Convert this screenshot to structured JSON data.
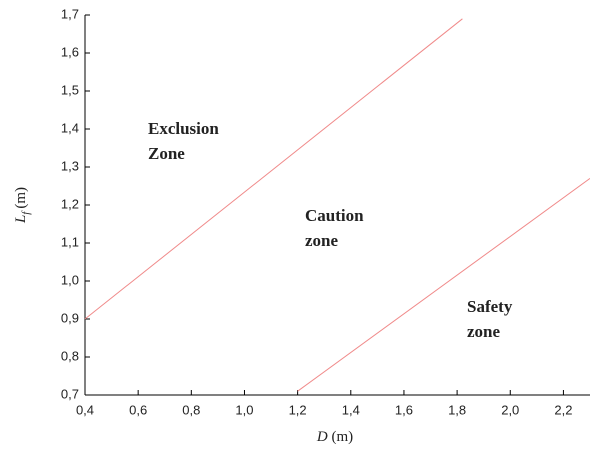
{
  "chart_data": {
    "type": "line",
    "xlabel": {
      "symbol": "D",
      "unit": "(m)"
    },
    "ylabel": {
      "symbol": "L",
      "subscript": "f",
      "unit": "(m)"
    },
    "series": [
      {
        "color": "#f08a8a",
        "x": [
          0.4,
          1.82
        ],
        "values": [
          0.9,
          1.69
        ]
      },
      {
        "color": "#f08a8a",
        "x": [
          1.2,
          2.3
        ],
        "values": [
          0.71,
          1.27
        ]
      }
    ],
    "annotations": [
      {
        "lines": [
          "Exclusion",
          "Zone"
        ],
        "color": "#e3212b"
      },
      {
        "lines": [
          "Caution",
          "zone"
        ],
        "color": "#e3212b"
      },
      {
        "lines": [
          "Safety",
          "zone"
        ],
        "color": "#e3212b"
      }
    ],
    "xlim": [
      0.4,
      2.3
    ],
    "ylim": [
      0.7,
      1.7
    ],
    "xticks": [
      {
        "value": 0.4,
        "label": "0,4"
      },
      {
        "value": 0.6,
        "label": "0,6"
      },
      {
        "value": 0.8,
        "label": "0,8"
      },
      {
        "value": 1.0,
        "label": "1,0"
      },
      {
        "value": 1.2,
        "label": "1,2"
      },
      {
        "value": 1.4,
        "label": "1,4"
      },
      {
        "value": 1.6,
        "label": "1,6"
      },
      {
        "value": 1.8,
        "label": "1,8"
      },
      {
        "value": 2.0,
        "label": "2,0"
      },
      {
        "value": 2.2,
        "label": "2,2"
      }
    ],
    "yticks": [
      {
        "value": 0.7,
        "label": "0,7"
      },
      {
        "value": 0.8,
        "label": "0,8"
      },
      {
        "value": 0.9,
        "label": "0,9"
      },
      {
        "value": 1.0,
        "label": "1,0"
      },
      {
        "value": 1.1,
        "label": "1,1"
      },
      {
        "value": 1.2,
        "label": "1,2"
      },
      {
        "value": 1.3,
        "label": "1,3"
      },
      {
        "value": 1.4,
        "label": "1,4"
      },
      {
        "value": 1.5,
        "label": "1,5"
      },
      {
        "value": 1.6,
        "label": "1,6"
      },
      {
        "value": 1.7,
        "label": "1,7"
      }
    ],
    "grid": false
  }
}
